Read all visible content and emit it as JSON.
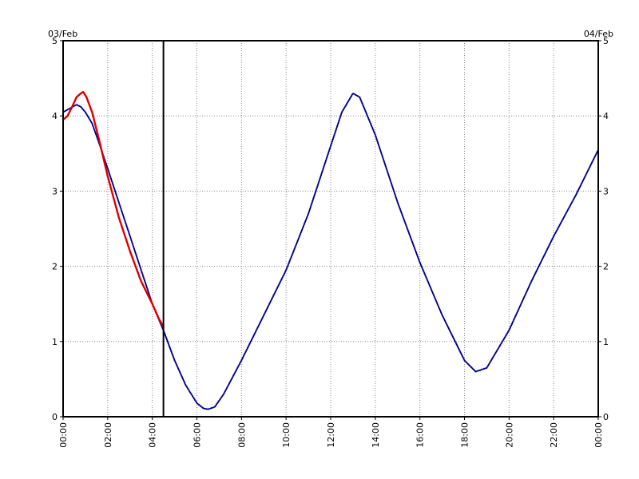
{
  "chart_data": {
    "type": "line",
    "date_left": "03/Feb",
    "date_right": "04/Feb",
    "x_tick_labels": [
      "00:00",
      "02:00",
      "04:00",
      "06:00",
      "08:00",
      "10:00",
      "12:00",
      "14:00",
      "16:00",
      "18:00",
      "20:00",
      "22:00",
      "00:00"
    ],
    "y_tick_labels": [
      "0",
      "1",
      "2",
      "3",
      "4",
      "5"
    ],
    "xlim_hours": [
      0,
      24
    ],
    "ylim": [
      0,
      5
    ],
    "grid": true,
    "current_time_marker_hours": 4.5,
    "series": [
      {
        "color": "#00008b",
        "style": "dotted",
        "points": [
          [
            0,
            4.05
          ],
          [
            0.3,
            4.1
          ],
          [
            0.6,
            4.15
          ],
          [
            0.8,
            4.12
          ],
          [
            1.0,
            4.05
          ],
          [
            1.3,
            3.9
          ],
          [
            1.6,
            3.65
          ],
          [
            2.0,
            3.3
          ],
          [
            2.5,
            2.85
          ],
          [
            3.0,
            2.4
          ],
          [
            3.5,
            1.95
          ],
          [
            4.0,
            1.5
          ],
          [
            4.5,
            1.15
          ],
          [
            5.0,
            0.75
          ],
          [
            5.5,
            0.42
          ],
          [
            6.0,
            0.18
          ],
          [
            6.3,
            0.11
          ],
          [
            6.5,
            0.1
          ],
          [
            6.8,
            0.13
          ],
          [
            7.2,
            0.3
          ],
          [
            8.0,
            0.75
          ],
          [
            9.0,
            1.35
          ],
          [
            10.0,
            1.95
          ],
          [
            11.0,
            2.7
          ],
          [
            12.0,
            3.6
          ],
          [
            12.5,
            4.05
          ],
          [
            13.0,
            4.3
          ],
          [
            13.3,
            4.25
          ],
          [
            14.0,
            3.75
          ],
          [
            15.0,
            2.85
          ],
          [
            16.0,
            2.05
          ],
          [
            17.0,
            1.35
          ],
          [
            18.0,
            0.75
          ],
          [
            18.5,
            0.6
          ],
          [
            19.0,
            0.65
          ],
          [
            20.0,
            1.15
          ],
          [
            21.0,
            1.8
          ],
          [
            22.0,
            2.4
          ],
          [
            23.0,
            2.95
          ],
          [
            24.0,
            3.55
          ]
        ]
      },
      {
        "color": "#dd0000",
        "style": "solid",
        "points": [
          [
            0,
            3.95
          ],
          [
            0.2,
            4.0
          ],
          [
            0.4,
            4.12
          ],
          [
            0.6,
            4.25
          ],
          [
            0.8,
            4.3
          ],
          [
            0.9,
            4.32
          ],
          [
            1.05,
            4.25
          ],
          [
            1.3,
            4.05
          ],
          [
            1.6,
            3.7
          ],
          [
            2.0,
            3.2
          ],
          [
            2.5,
            2.65
          ],
          [
            3.0,
            2.2
          ],
          [
            3.5,
            1.8
          ],
          [
            4.0,
            1.5
          ],
          [
            4.3,
            1.3
          ],
          [
            4.5,
            1.2
          ]
        ]
      }
    ]
  }
}
